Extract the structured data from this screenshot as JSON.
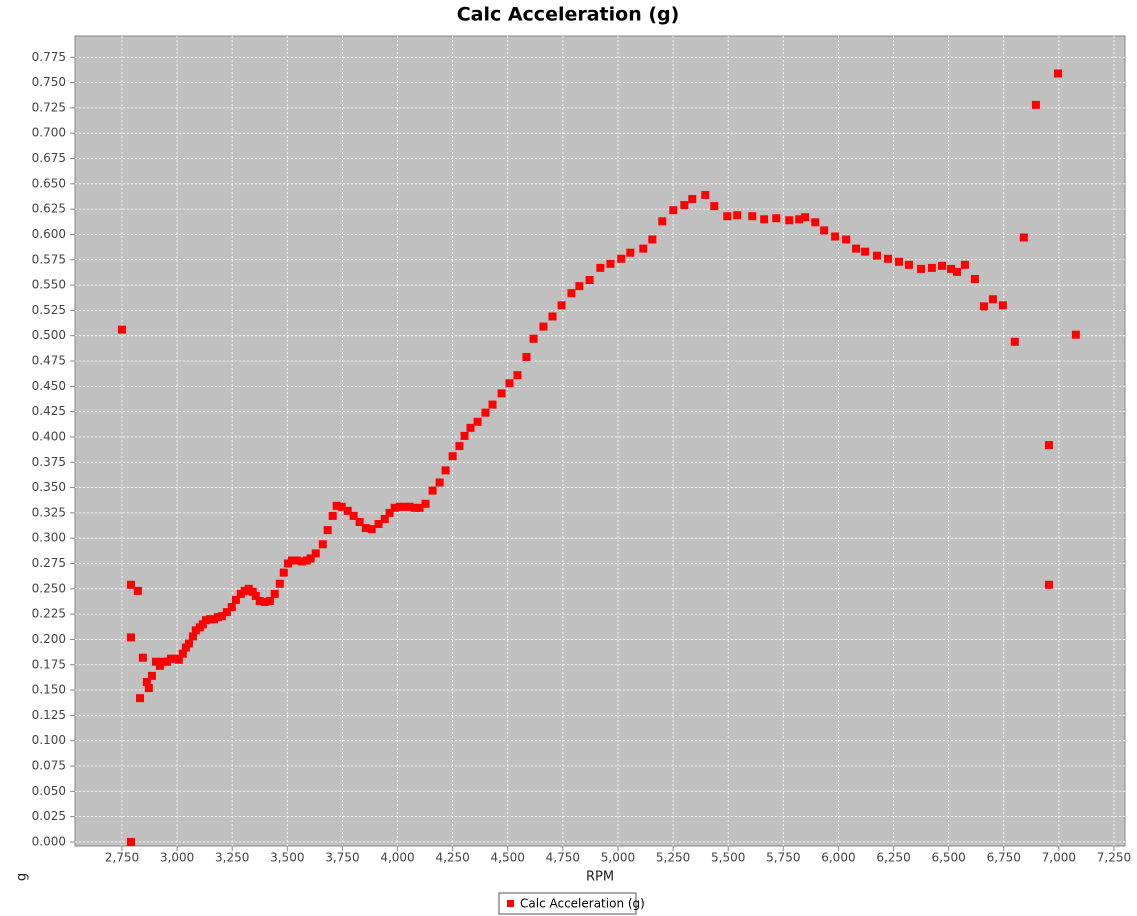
{
  "chart_data": {
    "type": "scatter",
    "title": "Calc Acceleration (g)",
    "x_label": "RPM",
    "y_label": "g",
    "x": [
      2750,
      2791,
      2791,
      2791,
      2822,
      2832,
      2845,
      2863,
      2872,
      2886,
      2904,
      2922,
      2936,
      2954,
      2972,
      2990,
      3008,
      3026,
      3040,
      3054,
      3072,
      3085,
      3103,
      3117,
      3131,
      3149,
      3167,
      3185,
      3203,
      3226,
      3248,
      3267,
      3289,
      3307,
      3325,
      3343,
      3357,
      3375,
      3398,
      3421,
      3443,
      3466,
      3484,
      3503,
      3521,
      3543,
      3566,
      3589,
      3606,
      3629,
      3661,
      3683,
      3706,
      3724,
      3747,
      3774,
      3801,
      3828,
      3856,
      3883,
      3914,
      3942,
      3964,
      3987,
      4010,
      4032,
      4055,
      4078,
      4100,
      4127,
      4159,
      4191,
      4218,
      4250,
      4281,
      4304,
      4331,
      4363,
      4399,
      4431,
      4472,
      4508,
      4544,
      4585,
      4617,
      4662,
      4703,
      4744,
      4789,
      4825,
      4871,
      4920,
      4966,
      5015,
      5056,
      5115,
      5156,
      5201,
      5251,
      5301,
      5337,
      5396,
      5437,
      5496,
      5541,
      5609,
      5663,
      5718,
      5777,
      5822,
      5849,
      5895,
      5935,
      5985,
      6035,
      6080,
      6121,
      6175,
      6225,
      6275,
      6320,
      6375,
      6424,
      6470,
      6511,
      6538,
      6574,
      6619,
      6660,
      6701,
      6746,
      6800,
      6841,
      6896,
      6955,
      6955,
      6996,
      7077
    ],
    "series": [
      {
        "name": "Calc Acceleration (g)",
        "color": "#ff0000",
        "values": [
          0.506,
          0.254,
          0.202,
          0.0,
          0.248,
          0.142,
          0.182,
          0.158,
          0.152,
          0.164,
          0.178,
          0.174,
          0.178,
          0.178,
          0.181,
          0.181,
          0.18,
          0.186,
          0.192,
          0.196,
          0.203,
          0.209,
          0.212,
          0.215,
          0.219,
          0.22,
          0.22,
          0.222,
          0.223,
          0.227,
          0.232,
          0.239,
          0.245,
          0.248,
          0.25,
          0.247,
          0.243,
          0.238,
          0.237,
          0.238,
          0.245,
          0.255,
          0.266,
          0.275,
          0.278,
          0.278,
          0.277,
          0.278,
          0.28,
          0.285,
          0.294,
          0.308,
          0.322,
          0.332,
          0.331,
          0.327,
          0.322,
          0.316,
          0.31,
          0.309,
          0.314,
          0.319,
          0.325,
          0.33,
          0.331,
          0.331,
          0.331,
          0.33,
          0.33,
          0.334,
          0.347,
          0.355,
          0.367,
          0.381,
          0.391,
          0.401,
          0.409,
          0.415,
          0.424,
          0.432,
          0.443,
          0.453,
          0.461,
          0.479,
          0.497,
          0.509,
          0.519,
          0.53,
          0.542,
          0.549,
          0.555,
          0.567,
          0.571,
          0.576,
          0.582,
          0.586,
          0.595,
          0.613,
          0.624,
          0.629,
          0.635,
          0.639,
          0.628,
          0.618,
          0.619,
          0.618,
          0.615,
          0.616,
          0.614,
          0.615,
          0.617,
          0.612,
          0.604,
          0.598,
          0.595,
          0.586,
          0.583,
          0.579,
          0.576,
          0.573,
          0.57,
          0.566,
          0.567,
          0.569,
          0.566,
          0.563,
          0.57,
          0.556,
          0.529,
          0.536,
          0.53,
          0.494,
          0.597,
          0.728,
          0.392,
          0.254,
          0.759,
          0.501
        ]
      }
    ],
    "xlim": [
      2537,
      7300
    ],
    "ylim": [
      -0.004,
      0.796
    ],
    "xticks": [
      {
        "value": 2750,
        "label": "2,750"
      },
      {
        "value": 3000,
        "label": "3,000"
      },
      {
        "value": 3250,
        "label": "3,250"
      },
      {
        "value": 3500,
        "label": "3,500"
      },
      {
        "value": 3750,
        "label": "3,750"
      },
      {
        "value": 4000,
        "label": "4,000"
      },
      {
        "value": 4250,
        "label": "4,250"
      },
      {
        "value": 4500,
        "label": "4,500"
      },
      {
        "value": 4750,
        "label": "4,750"
      },
      {
        "value": 5000,
        "label": "5,000"
      },
      {
        "value": 5250,
        "label": "5,250"
      },
      {
        "value": 5500,
        "label": "5,500"
      },
      {
        "value": 5750,
        "label": "5,750"
      },
      {
        "value": 6000,
        "label": "6,000"
      },
      {
        "value": 6250,
        "label": "6,250"
      },
      {
        "value": 6500,
        "label": "6,500"
      },
      {
        "value": 6750,
        "label": "6,750"
      },
      {
        "value": 7000,
        "label": "7,000"
      },
      {
        "value": 7250,
        "label": "7,250"
      }
    ],
    "yticks": [
      {
        "value": 0,
        "label": "0.000"
      },
      {
        "value": 0.025,
        "label": "0.025"
      },
      {
        "value": 0.05,
        "label": "0.050"
      },
      {
        "value": 0.075,
        "label": "0.075"
      },
      {
        "value": 0.1,
        "label": "0.100"
      },
      {
        "value": 0.125,
        "label": "0.125"
      },
      {
        "value": 0.15,
        "label": "0.150"
      },
      {
        "value": 0.175,
        "label": "0.175"
      },
      {
        "value": 0.2,
        "label": "0.200"
      },
      {
        "value": 0.225,
        "label": "0.225"
      },
      {
        "value": 0.25,
        "label": "0.250"
      },
      {
        "value": 0.275,
        "label": "0.275"
      },
      {
        "value": 0.3,
        "label": "0.300"
      },
      {
        "value": 0.325,
        "label": "0.325"
      },
      {
        "value": 0.35,
        "label": "0.350"
      },
      {
        "value": 0.375,
        "label": "0.375"
      },
      {
        "value": 0.4,
        "label": "0.400"
      },
      {
        "value": 0.425,
        "label": "0.425"
      },
      {
        "value": 0.45,
        "label": "0.450"
      },
      {
        "value": 0.475,
        "label": "0.475"
      },
      {
        "value": 0.5,
        "label": "0.500"
      },
      {
        "value": 0.525,
        "label": "0.525"
      },
      {
        "value": 0.55,
        "label": "0.550"
      },
      {
        "value": 0.575,
        "label": "0.575"
      },
      {
        "value": 0.6,
        "label": "0.600"
      },
      {
        "value": 0.625,
        "label": "0.625"
      },
      {
        "value": 0.65,
        "label": "0.650"
      },
      {
        "value": 0.675,
        "label": "0.675"
      },
      {
        "value": 0.7,
        "label": "0.700"
      },
      {
        "value": 0.725,
        "label": "0.725"
      },
      {
        "value": 0.75,
        "label": "0.750"
      },
      {
        "value": 0.775,
        "label": "0.775"
      }
    ],
    "grid": true,
    "legend": "bottom"
  }
}
